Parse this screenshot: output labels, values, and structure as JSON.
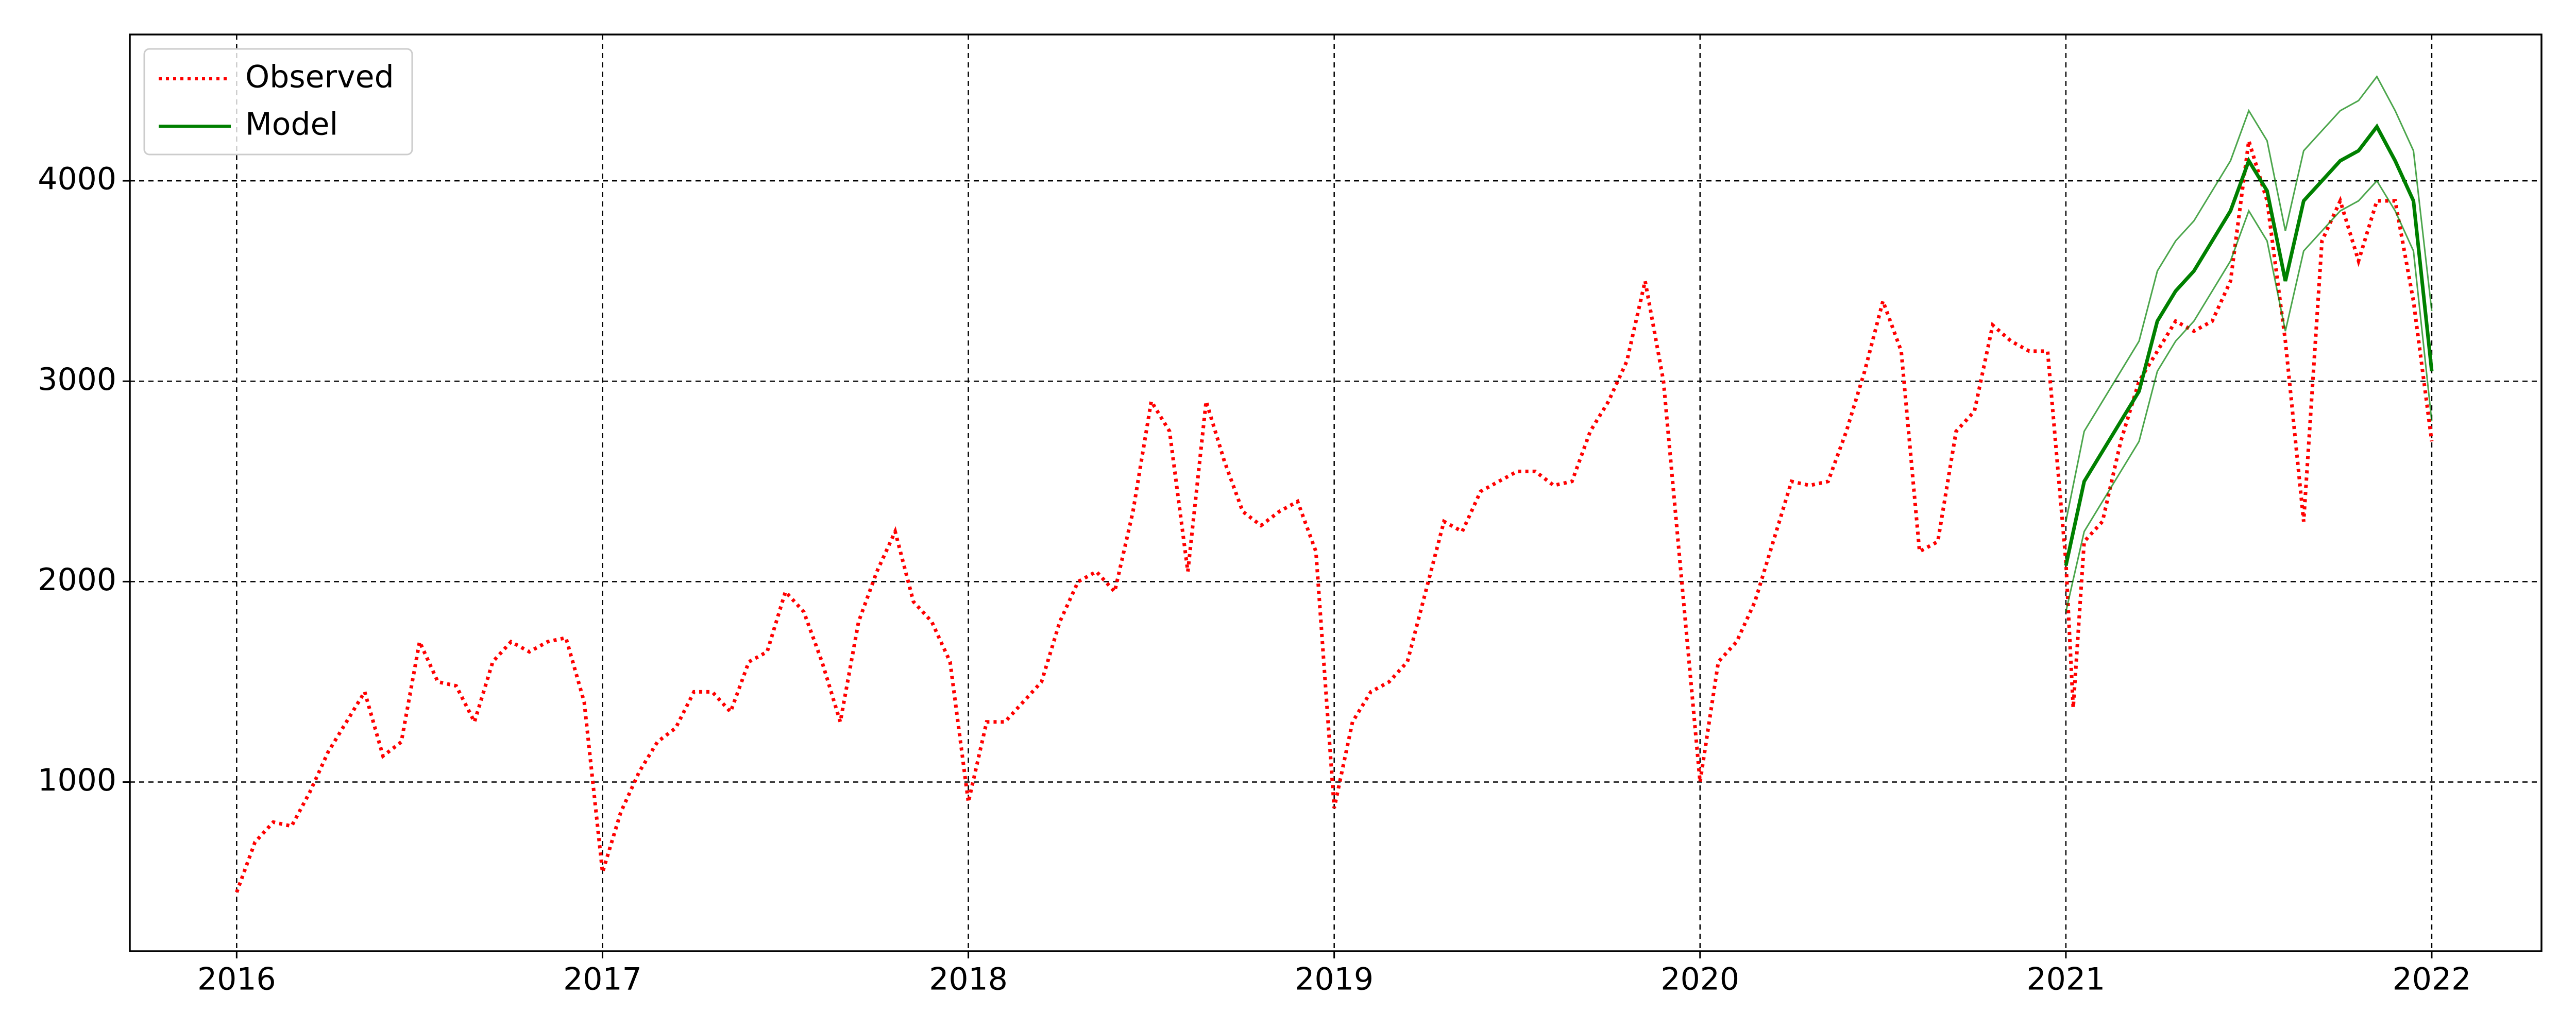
{
  "chart_data": {
    "type": "line",
    "xlim": [
      2015.708,
      2022.3
    ],
    "xticks": [
      2016,
      2017,
      2018,
      2019,
      2020,
      2021,
      2022
    ],
    "ylim": [
      156,
      4730
    ],
    "yticks": [
      1000,
      2000,
      3000,
      4000
    ],
    "grid": true,
    "legend": "upper-left",
    "series": [
      {
        "name": "Observed",
        "color": "#ff0000",
        "style": "dotted",
        "x": [
          2016.0,
          2016.05,
          2016.1,
          2016.15,
          2016.2,
          2016.25,
          2016.3,
          2016.35,
          2016.4,
          2016.45,
          2016.5,
          2016.55,
          2016.6,
          2016.65,
          2016.7,
          2016.75,
          2016.8,
          2016.85,
          2016.9,
          2016.95,
          2017.0,
          2017.05,
          2017.1,
          2017.15,
          2017.2,
          2017.25,
          2017.3,
          2017.35,
          2017.4,
          2017.45,
          2017.5,
          2017.55,
          2017.6,
          2017.65,
          2017.7,
          2017.75,
          2017.8,
          2017.85,
          2017.9,
          2017.95,
          2018.0,
          2018.05,
          2018.1,
          2018.15,
          2018.2,
          2018.25,
          2018.3,
          2018.35,
          2018.4,
          2018.45,
          2018.5,
          2018.55,
          2018.6,
          2018.65,
          2018.7,
          2018.75,
          2018.8,
          2018.85,
          2018.9,
          2018.95,
          2019.0,
          2019.05,
          2019.1,
          2019.15,
          2019.2,
          2019.25,
          2019.3,
          2019.35,
          2019.4,
          2019.45,
          2019.5,
          2019.55,
          2019.6,
          2019.65,
          2019.7,
          2019.75,
          2019.8,
          2019.85,
          2019.9,
          2019.95,
          2020.0,
          2020.05,
          2020.1,
          2020.15,
          2020.2,
          2020.25,
          2020.3,
          2020.35,
          2020.4,
          2020.45,
          2020.5,
          2020.55,
          2020.6,
          2020.65,
          2020.7,
          2020.75,
          2020.8,
          2020.85,
          2020.9,
          2020.95,
          2021.0,
          2021.02,
          2021.05,
          2021.1,
          2021.15,
          2021.2,
          2021.25,
          2021.3,
          2021.35,
          2021.4,
          2021.45,
          2021.5,
          2021.55,
          2021.6,
          2021.65,
          2021.7,
          2021.75,
          2021.8,
          2021.85,
          2021.9,
          2021.95,
          2022.0
        ],
        "values": [
          450,
          700,
          800,
          780,
          950,
          1150,
          1300,
          1450,
          1130,
          1200,
          1700,
          1500,
          1480,
          1300,
          1600,
          1700,
          1650,
          1700,
          1720,
          1400,
          550,
          850,
          1050,
          1200,
          1270,
          1450,
          1450,
          1350,
          1600,
          1650,
          1950,
          1850,
          1600,
          1300,
          1800,
          2050,
          2250,
          1900,
          1800,
          1600,
          900,
          1300,
          1300,
          1400,
          1500,
          1800,
          2000,
          2050,
          1950,
          2350,
          2900,
          2750,
          2050,
          2900,
          2600,
          2350,
          2280,
          2350,
          2400,
          2150,
          870,
          1300,
          1450,
          1500,
          1600,
          1950,
          2300,
          2250,
          2450,
          2500,
          2550,
          2550,
          2480,
          2500,
          2750,
          2900,
          3100,
          3500,
          3000,
          2000,
          1000,
          1600,
          1700,
          1900,
          2200,
          2500,
          2480,
          2500,
          2750,
          3050,
          3400,
          3150,
          2150,
          2200,
          2750,
          2850,
          3280,
          3200,
          3150,
          3150,
          2100,
          1370,
          2200,
          2300,
          2700,
          3000,
          3150,
          3300,
          3250,
          3300,
          3500,
          4200,
          3900,
          3200,
          2300,
          3700,
          3900,
          3600,
          3900,
          3900,
          3400,
          2700
        ]
      },
      {
        "name": "Model",
        "color": "#008000",
        "style": "solid",
        "x": [
          2021.0,
          2021.05,
          2021.1,
          2021.15,
          2021.2,
          2021.25,
          2021.3,
          2021.35,
          2021.4,
          2021.45,
          2021.5,
          2021.55,
          2021.6,
          2021.65,
          2021.7,
          2021.75,
          2021.8,
          2021.85,
          2021.9,
          2021.95,
          2022.0
        ],
        "values": [
          2080,
          2500,
          2650,
          2800,
          2950,
          3300,
          3450,
          3550,
          3700,
          3850,
          4100,
          3950,
          3500,
          3900,
          4000,
          4100,
          4150,
          4270,
          4100,
          3900,
          3050
        ],
        "upper": [
          2300,
          2750,
          2900,
          3050,
          3200,
          3550,
          3700,
          3800,
          3950,
          4100,
          4350,
          4200,
          3750,
          4150,
          4250,
          4350,
          4400,
          4520,
          4350,
          4150,
          3350
        ],
        "lower": [
          1850,
          2250,
          2400,
          2550,
          2700,
          3050,
          3200,
          3300,
          3450,
          3600,
          3850,
          3700,
          3250,
          3650,
          3750,
          3850,
          3900,
          4000,
          3850,
          3650,
          2800
        ]
      }
    ]
  }
}
